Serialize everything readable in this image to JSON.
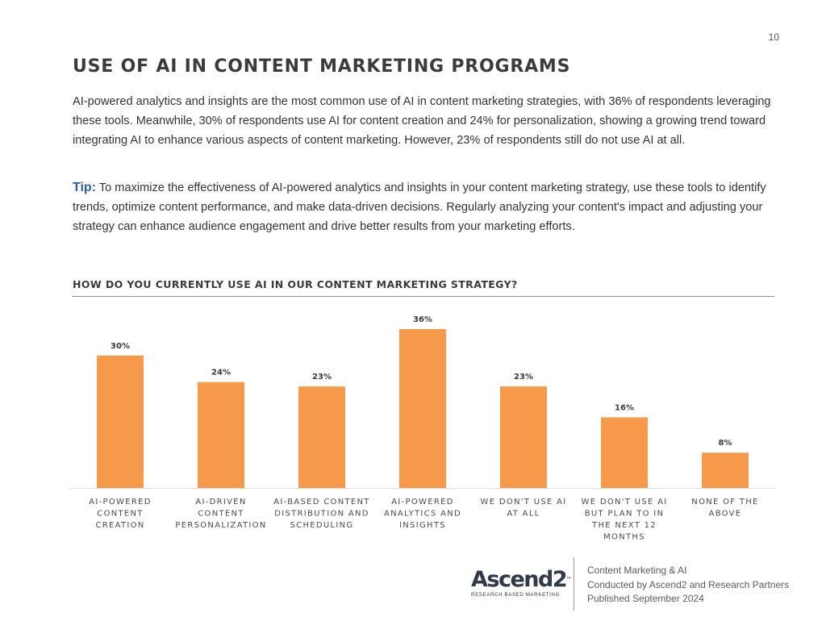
{
  "page": {
    "number": "10",
    "title": "USE OF AI IN CONTENT MARKETING PROGRAMS",
    "paragraph": "AI-powered analytics and insights are the most common use of AI in content marketing strategies, with 36% of respondents leveraging these tools. Meanwhile, 30% of respondents use AI for content creation and 24% for personalization, showing a growing trend toward integrating AI to enhance various aspects of content marketing. However, 23% of respondents still do not use AI at all.",
    "tip_label": "Tip:",
    "tip_text": "To maximize the effectiveness of AI-powered analytics and insights in your content marketing strategy, use these tools to identify trends, optimize content performance, and make data-driven decisions. Regularly analyzing your content's impact and adjusting your strategy can enhance audience engagement and drive better results from your marketing efforts."
  },
  "chart_data": {
    "type": "bar",
    "title": "HOW DO YOU CURRENTLY USE AI IN OUR CONTENT MARKETING STRATEGY?",
    "categories": [
      [
        "AI-POWERED",
        "CONTENT",
        "CREATION"
      ],
      [
        "AI-DRIVEN",
        "CONTENT",
        "PERSONALIZATION"
      ],
      [
        "AI-BASED CONTENT",
        "DISTRIBUTION AND",
        "SCHEDULING"
      ],
      [
        "AI-POWERED",
        "ANALYTICS AND",
        "INSIGHTS"
      ],
      [
        "WE DON'T USE AI",
        "AT ALL"
      ],
      [
        "WE DON'T USE AI",
        "BUT PLAN TO IN",
        "THE NEXT 12",
        "MONTHS"
      ],
      [
        "NONE OF THE",
        "ABOVE"
      ]
    ],
    "values": [
      30,
      24,
      23,
      36,
      23,
      16,
      8
    ],
    "value_labels": [
      "30%",
      "24%",
      "23%",
      "36%",
      "23%",
      "16%",
      "8%"
    ],
    "unit": "%",
    "xlabel": "",
    "ylabel": "",
    "ylim": [
      0,
      36
    ],
    "grid": false,
    "bar_color": "#f7994a"
  },
  "footer": {
    "logo_text": "Ascend2",
    "logo_tm": "™",
    "logo_tagline": "RESEARCH BASED MARKETING",
    "lines": [
      "Content Marketing & AI",
      "Conducted by Ascend2 and Research Partners",
      "Published September 2024"
    ]
  }
}
